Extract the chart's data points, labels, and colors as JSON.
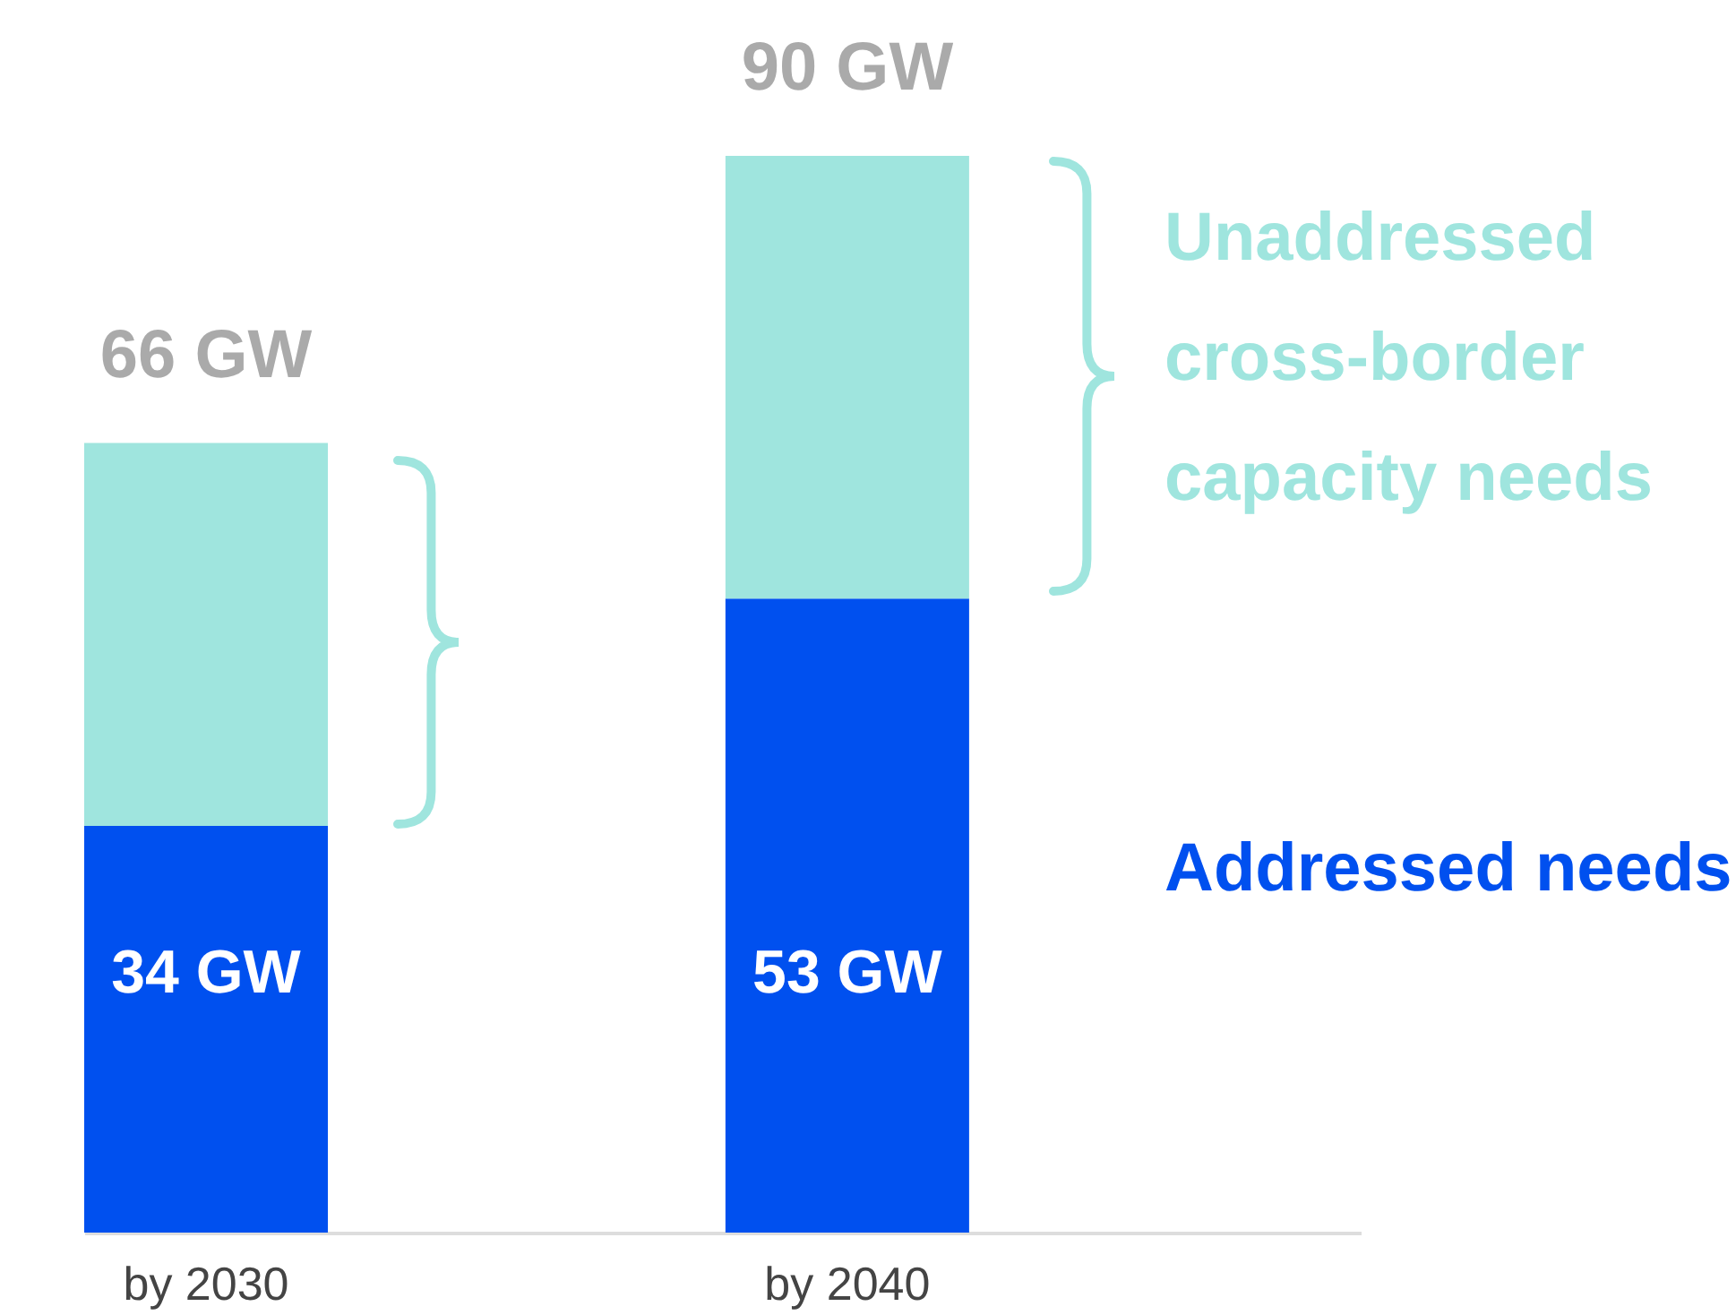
{
  "chart_data": {
    "type": "bar",
    "stacked": true,
    "categories": [
      "by 2030",
      "by 2040"
    ],
    "series": [
      {
        "name": "Addressed needs",
        "color": "#0050ef",
        "values": [
          34,
          53
        ],
        "value_labels": [
          "34 GW",
          "53 GW"
        ]
      },
      {
        "name": "Unaddressed cross-border capacity needs",
        "color": "#9fe5de",
        "values": [
          32,
          37
        ]
      }
    ],
    "totals": [
      "66 GW",
      "90 GW"
    ]
  }
}
